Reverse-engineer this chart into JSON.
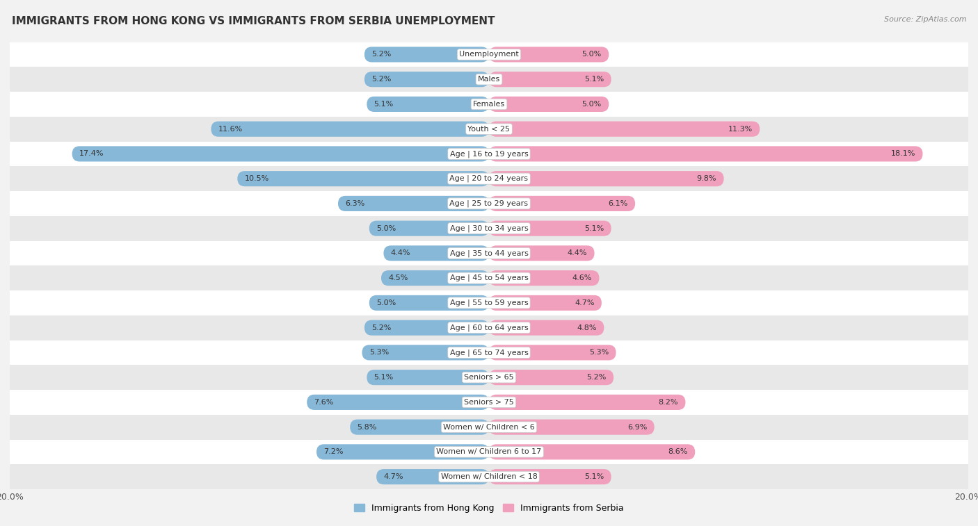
{
  "title": "IMMIGRANTS FROM HONG KONG VS IMMIGRANTS FROM SERBIA UNEMPLOYMENT",
  "source": "Source: ZipAtlas.com",
  "categories": [
    "Unemployment",
    "Males",
    "Females",
    "Youth < 25",
    "Age | 16 to 19 years",
    "Age | 20 to 24 years",
    "Age | 25 to 29 years",
    "Age | 30 to 34 years",
    "Age | 35 to 44 years",
    "Age | 45 to 54 years",
    "Age | 55 to 59 years",
    "Age | 60 to 64 years",
    "Age | 65 to 74 years",
    "Seniors > 65",
    "Seniors > 75",
    "Women w/ Children < 6",
    "Women w/ Children 6 to 17",
    "Women w/ Children < 18"
  ],
  "hong_kong": [
    5.2,
    5.2,
    5.1,
    11.6,
    17.4,
    10.5,
    6.3,
    5.0,
    4.4,
    4.5,
    5.0,
    5.2,
    5.3,
    5.1,
    7.6,
    5.8,
    7.2,
    4.7
  ],
  "serbia": [
    5.0,
    5.1,
    5.0,
    11.3,
    18.1,
    9.8,
    6.1,
    5.1,
    4.4,
    4.6,
    4.7,
    4.8,
    5.3,
    5.2,
    8.2,
    6.9,
    8.6,
    5.1
  ],
  "hk_color": "#87b8d8",
  "serbia_color": "#f0a0bc",
  "bg_color": "#f2f2f2",
  "row_color_odd": "#ffffff",
  "row_color_even": "#e8e8e8",
  "max_val": 20.0,
  "legend_hk": "Immigrants from Hong Kong",
  "legend_serbia": "Immigrants from Serbia"
}
